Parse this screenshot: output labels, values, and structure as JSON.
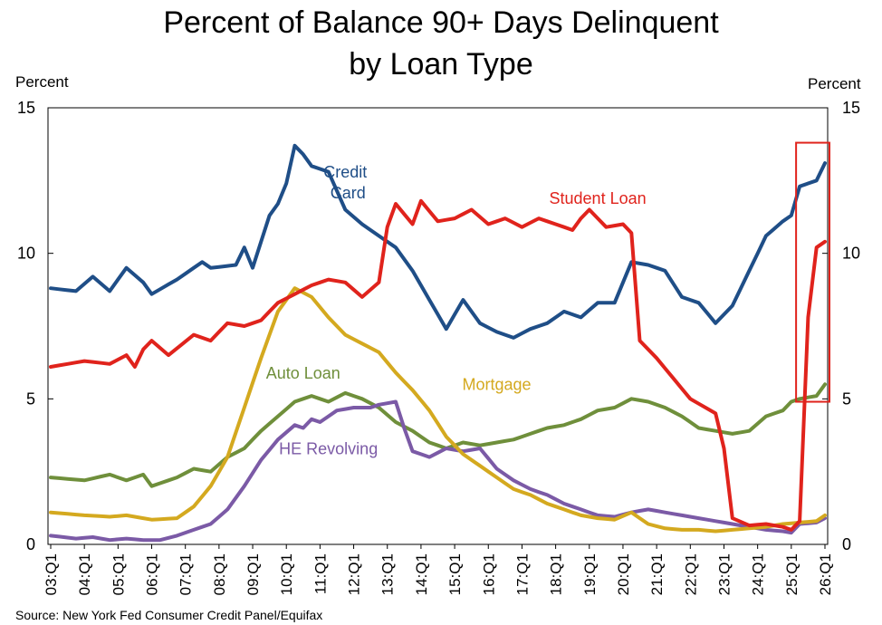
{
  "chart_data": {
    "type": "line",
    "title_line1": "Percent of Balance 90+ Days Delinquent",
    "title_line2": "by Loan Type",
    "ylabel_left": "Percent",
    "ylabel_right": "Percent",
    "ylim": [
      0,
      15
    ],
    "yticks": [
      0,
      5,
      10,
      15
    ],
    "x_start_quarter": "2003Q1",
    "x_end_quarter": "2026Q1",
    "x_tick_labels": [
      "03:Q1",
      "04:Q1",
      "05:Q1",
      "06:Q1",
      "07:Q1",
      "08:Q1",
      "09:Q1",
      "10:Q1",
      "11:Q1",
      "12:Q1",
      "13:Q1",
      "14:Q1",
      "15:Q1",
      "16:Q1",
      "17:Q1",
      "18:Q1",
      "19:Q1",
      "20:Q1",
      "21:Q1",
      "22:Q1",
      "23:Q1",
      "24:Q1",
      "25:Q1",
      "26:Q1"
    ],
    "source": "Source: New York Fed Consumer Credit Panel/Equifax",
    "grid": false,
    "highlight": {
      "from_quarter": "2025Q2",
      "to_quarter": "2026Q1",
      "color": "#e0231c"
    },
    "series": [
      {
        "label": "Credit Card",
        "label_lines": [
          "Credit",
          "Card"
        ],
        "color": "#1f4e87",
        "anchors": [
          [
            "2003Q1",
            8.8
          ],
          [
            "2003Q4",
            8.7
          ],
          [
            "2004Q2",
            9.2
          ],
          [
            "2004Q4",
            8.7
          ],
          [
            "2005Q2",
            9.5
          ],
          [
            "2005Q4",
            9.0
          ],
          [
            "2006Q1",
            8.6
          ],
          [
            "2006Q4",
            9.1
          ],
          [
            "2007Q3",
            9.7
          ],
          [
            "2007Q4",
            9.5
          ],
          [
            "2008Q3",
            9.6
          ],
          [
            "2008Q4",
            10.2
          ],
          [
            "2009Q1",
            9.5
          ],
          [
            "2009Q3",
            11.3
          ],
          [
            "2009Q4",
            11.7
          ],
          [
            "2010Q1",
            12.4
          ],
          [
            "2010Q2",
            13.7
          ],
          [
            "2010Q3",
            13.4
          ],
          [
            "2010Q4",
            13.0
          ],
          [
            "2011Q2",
            12.8
          ],
          [
            "2011Q4",
            11.5
          ],
          [
            "2012Q2",
            11.0
          ],
          [
            "2012Q4",
            10.6
          ],
          [
            "2013Q2",
            10.2
          ],
          [
            "2013Q4",
            9.4
          ],
          [
            "2014Q2",
            8.4
          ],
          [
            "2014Q4",
            7.4
          ],
          [
            "2015Q2",
            8.4
          ],
          [
            "2015Q4",
            7.6
          ],
          [
            "2016Q2",
            7.3
          ],
          [
            "2016Q4",
            7.1
          ],
          [
            "2017Q2",
            7.4
          ],
          [
            "2017Q4",
            7.6
          ],
          [
            "2018Q2",
            8.0
          ],
          [
            "2018Q4",
            7.8
          ],
          [
            "2019Q2",
            8.3
          ],
          [
            "2019Q4",
            8.3
          ],
          [
            "2020Q2",
            9.7
          ],
          [
            "2020Q4",
            9.6
          ],
          [
            "2021Q2",
            9.4
          ],
          [
            "2021Q4",
            8.5
          ],
          [
            "2022Q2",
            8.3
          ],
          [
            "2022Q4",
            7.6
          ],
          [
            "2023Q2",
            8.2
          ],
          [
            "2023Q4",
            9.4
          ],
          [
            "2024Q2",
            10.6
          ],
          [
            "2024Q4",
            11.1
          ],
          [
            "2025Q1",
            11.3
          ],
          [
            "2025Q2",
            12.3
          ],
          [
            "2025Q4",
            12.5
          ],
          [
            "2026Q1",
            13.1
          ]
        ]
      },
      {
        "label": "Student Loan",
        "color": "#e0231c",
        "anchors": [
          [
            "2003Q1",
            6.1
          ],
          [
            "2004Q1",
            6.3
          ],
          [
            "2004Q4",
            6.2
          ],
          [
            "2005Q2",
            6.5
          ],
          [
            "2005Q3",
            6.1
          ],
          [
            "2005Q4",
            6.7
          ],
          [
            "2006Q1",
            7.0
          ],
          [
            "2006Q3",
            6.5
          ],
          [
            "2007Q2",
            7.2
          ],
          [
            "2007Q4",
            7.0
          ],
          [
            "2008Q2",
            7.6
          ],
          [
            "2008Q4",
            7.5
          ],
          [
            "2009Q2",
            7.7
          ],
          [
            "2009Q4",
            8.3
          ],
          [
            "2010Q2",
            8.6
          ],
          [
            "2010Q4",
            8.9
          ],
          [
            "2011Q2",
            9.1
          ],
          [
            "2011Q4",
            9.0
          ],
          [
            "2012Q2",
            8.5
          ],
          [
            "2012Q4",
            9.0
          ],
          [
            "2013Q1",
            10.9
          ],
          [
            "2013Q2",
            11.7
          ],
          [
            "2013Q4",
            11.0
          ],
          [
            "2014Q1",
            11.8
          ],
          [
            "2014Q3",
            11.1
          ],
          [
            "2015Q1",
            11.2
          ],
          [
            "2015Q3",
            11.5
          ],
          [
            "2016Q1",
            11.0
          ],
          [
            "2016Q3",
            11.2
          ],
          [
            "2017Q1",
            10.9
          ],
          [
            "2017Q3",
            11.2
          ],
          [
            "2018Q1",
            11.0
          ],
          [
            "2018Q3",
            10.8
          ],
          [
            "2018Q4",
            11.2
          ],
          [
            "2019Q1",
            11.5
          ],
          [
            "2019Q3",
            10.9
          ],
          [
            "2020Q1",
            11.0
          ],
          [
            "2020Q2",
            10.7
          ],
          [
            "2020Q3",
            7.0
          ],
          [
            "2021Q1",
            6.4
          ],
          [
            "2021Q3",
            5.7
          ],
          [
            "2022Q1",
            5.0
          ],
          [
            "2022Q4",
            4.5
          ],
          [
            "2023Q1",
            3.3
          ],
          [
            "2023Q2",
            0.9
          ],
          [
            "2023Q4",
            0.65
          ],
          [
            "2024Q2",
            0.7
          ],
          [
            "2024Q4",
            0.6
          ],
          [
            "2025Q1",
            0.5
          ],
          [
            "2025Q2",
            0.8
          ],
          [
            "2025Q3",
            7.8
          ],
          [
            "2025Q4",
            10.2
          ],
          [
            "2026Q1",
            10.4
          ]
        ]
      },
      {
        "label": "Auto Loan",
        "color": "#6f8f3b",
        "anchors": [
          [
            "2003Q1",
            2.3
          ],
          [
            "2004Q1",
            2.2
          ],
          [
            "2004Q4",
            2.4
          ],
          [
            "2005Q2",
            2.2
          ],
          [
            "2005Q4",
            2.4
          ],
          [
            "2006Q1",
            2.0
          ],
          [
            "2006Q4",
            2.3
          ],
          [
            "2007Q2",
            2.6
          ],
          [
            "2007Q4",
            2.5
          ],
          [
            "2008Q2",
            3.0
          ],
          [
            "2008Q4",
            3.3
          ],
          [
            "2009Q2",
            3.9
          ],
          [
            "2009Q4",
            4.4
          ],
          [
            "2010Q2",
            4.9
          ],
          [
            "2010Q4",
            5.1
          ],
          [
            "2011Q2",
            4.9
          ],
          [
            "2011Q4",
            5.2
          ],
          [
            "2012Q2",
            5.0
          ],
          [
            "2012Q4",
            4.7
          ],
          [
            "2013Q2",
            4.2
          ],
          [
            "2013Q4",
            3.9
          ],
          [
            "2014Q2",
            3.5
          ],
          [
            "2014Q4",
            3.3
          ],
          [
            "2015Q2",
            3.5
          ],
          [
            "2015Q4",
            3.4
          ],
          [
            "2016Q2",
            3.5
          ],
          [
            "2016Q4",
            3.6
          ],
          [
            "2017Q2",
            3.8
          ],
          [
            "2017Q4",
            4.0
          ],
          [
            "2018Q2",
            4.1
          ],
          [
            "2018Q4",
            4.3
          ],
          [
            "2019Q2",
            4.6
          ],
          [
            "2019Q4",
            4.7
          ],
          [
            "2020Q2",
            5.0
          ],
          [
            "2020Q4",
            4.9
          ],
          [
            "2021Q2",
            4.7
          ],
          [
            "2021Q4",
            4.4
          ],
          [
            "2022Q2",
            4.0
          ],
          [
            "2022Q4",
            3.9
          ],
          [
            "2023Q2",
            3.8
          ],
          [
            "2023Q4",
            3.9
          ],
          [
            "2024Q2",
            4.4
          ],
          [
            "2024Q4",
            4.6
          ],
          [
            "2025Q1",
            4.9
          ],
          [
            "2025Q2",
            5.0
          ],
          [
            "2025Q4",
            5.1
          ],
          [
            "2026Q1",
            5.5
          ]
        ]
      },
      {
        "label": "Mortgage",
        "color": "#d4a91f",
        "anchors": [
          [
            "2003Q1",
            1.1
          ],
          [
            "2004Q1",
            1.0
          ],
          [
            "2004Q4",
            0.95
          ],
          [
            "2005Q2",
            1.0
          ],
          [
            "2005Q4",
            0.9
          ],
          [
            "2006Q1",
            0.85
          ],
          [
            "2006Q4",
            0.9
          ],
          [
            "2007Q2",
            1.3
          ],
          [
            "2007Q4",
            2.0
          ],
          [
            "2008Q2",
            3.0
          ],
          [
            "2008Q4",
            4.7
          ],
          [
            "2009Q2",
            6.4
          ],
          [
            "2009Q4",
            8.0
          ],
          [
            "2010Q2",
            8.8
          ],
          [
            "2010Q4",
            8.5
          ],
          [
            "2011Q2",
            7.8
          ],
          [
            "2011Q4",
            7.2
          ],
          [
            "2012Q2",
            6.9
          ],
          [
            "2012Q4",
            6.6
          ],
          [
            "2013Q2",
            5.9
          ],
          [
            "2013Q4",
            5.3
          ],
          [
            "2014Q2",
            4.6
          ],
          [
            "2014Q4",
            3.7
          ],
          [
            "2015Q2",
            3.1
          ],
          [
            "2015Q4",
            2.7
          ],
          [
            "2016Q2",
            2.3
          ],
          [
            "2016Q4",
            1.9
          ],
          [
            "2017Q2",
            1.7
          ],
          [
            "2017Q4",
            1.4
          ],
          [
            "2018Q2",
            1.2
          ],
          [
            "2018Q4",
            1.0
          ],
          [
            "2019Q2",
            0.9
          ],
          [
            "2019Q4",
            0.85
          ],
          [
            "2020Q2",
            1.1
          ],
          [
            "2020Q4",
            0.7
          ],
          [
            "2021Q2",
            0.55
          ],
          [
            "2021Q4",
            0.5
          ],
          [
            "2022Q2",
            0.5
          ],
          [
            "2022Q4",
            0.45
          ],
          [
            "2023Q2",
            0.5
          ],
          [
            "2023Q4",
            0.55
          ],
          [
            "2024Q2",
            0.6
          ],
          [
            "2024Q4",
            0.7
          ],
          [
            "2025Q2",
            0.75
          ],
          [
            "2025Q4",
            0.8
          ],
          [
            "2026Q1",
            1.0
          ]
        ]
      },
      {
        "label": "HE Revolving",
        "color": "#7b5aa6",
        "anchors": [
          [
            "2003Q1",
            0.3
          ],
          [
            "2003Q4",
            0.2
          ],
          [
            "2004Q2",
            0.25
          ],
          [
            "2004Q4",
            0.15
          ],
          [
            "2005Q2",
            0.2
          ],
          [
            "2005Q4",
            0.15
          ],
          [
            "2006Q2",
            0.15
          ],
          [
            "2006Q4",
            0.3
          ],
          [
            "2007Q2",
            0.5
          ],
          [
            "2007Q4",
            0.7
          ],
          [
            "2008Q2",
            1.2
          ],
          [
            "2008Q4",
            2.0
          ],
          [
            "2009Q2",
            2.9
          ],
          [
            "2009Q4",
            3.6
          ],
          [
            "2010Q2",
            4.1
          ],
          [
            "2010Q3",
            4.0
          ],
          [
            "2010Q4",
            4.3
          ],
          [
            "2011Q1",
            4.2
          ],
          [
            "2011Q3",
            4.6
          ],
          [
            "2012Q1",
            4.7
          ],
          [
            "2012Q3",
            4.7
          ],
          [
            "2012Q4",
            4.8
          ],
          [
            "2013Q2",
            4.9
          ],
          [
            "2013Q3",
            4.0
          ],
          [
            "2013Q4",
            3.2
          ],
          [
            "2014Q2",
            3.0
          ],
          [
            "2014Q4",
            3.3
          ],
          [
            "2015Q2",
            3.2
          ],
          [
            "2015Q4",
            3.3
          ],
          [
            "2016Q2",
            2.6
          ],
          [
            "2016Q4",
            2.2
          ],
          [
            "2017Q2",
            1.9
          ],
          [
            "2017Q4",
            1.7
          ],
          [
            "2018Q2",
            1.4
          ],
          [
            "2018Q4",
            1.2
          ],
          [
            "2019Q2",
            1.0
          ],
          [
            "2019Q4",
            0.95
          ],
          [
            "2020Q2",
            1.1
          ],
          [
            "2020Q4",
            1.2
          ],
          [
            "2021Q2",
            1.1
          ],
          [
            "2021Q4",
            1.0
          ],
          [
            "2022Q2",
            0.9
          ],
          [
            "2022Q4",
            0.8
          ],
          [
            "2023Q2",
            0.7
          ],
          [
            "2023Q4",
            0.6
          ],
          [
            "2024Q2",
            0.5
          ],
          [
            "2024Q4",
            0.45
          ],
          [
            "2025Q1",
            0.4
          ],
          [
            "2025Q2",
            0.7
          ],
          [
            "2025Q4",
            0.75
          ],
          [
            "2026Q1",
            0.9
          ]
        ]
      }
    ]
  }
}
